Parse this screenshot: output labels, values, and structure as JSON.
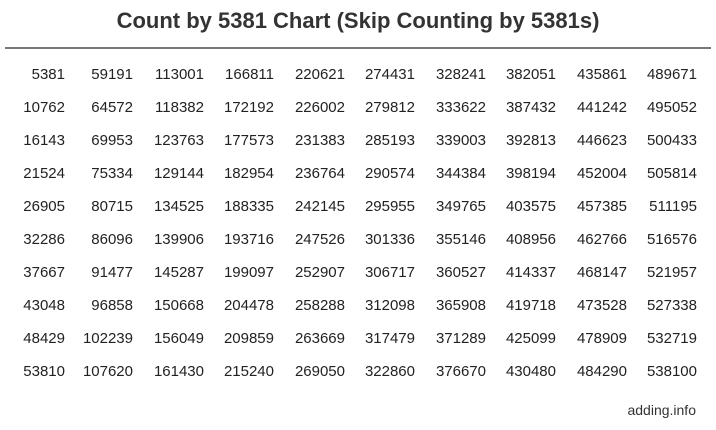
{
  "title": "Count by 5381 Chart (Skip Counting by 5381s)",
  "footer": "adding.info",
  "chart_data": {
    "type": "table",
    "title": "Count by 5381 Chart (Skip Counting by 5381s)",
    "rows": [
      [
        "5381",
        "59191",
        "113001",
        "166811",
        "220621",
        "274431",
        "328241",
        "382051",
        "435861",
        "489671"
      ],
      [
        "10762",
        "64572",
        "118382",
        "172192",
        "226002",
        "279812",
        "333622",
        "387432",
        "441242",
        "495052"
      ],
      [
        "16143",
        "69953",
        "123763",
        "177573",
        "231383",
        "285193",
        "339003",
        "392813",
        "446623",
        "500433"
      ],
      [
        "21524",
        "75334",
        "129144",
        "182954",
        "236764",
        "290574",
        "344384",
        "398194",
        "452004",
        "505814"
      ],
      [
        "26905",
        "80715",
        "134525",
        "188335",
        "242145",
        "295955",
        "349765",
        "403575",
        "457385",
        "511195"
      ],
      [
        "32286",
        "86096",
        "139906",
        "193716",
        "247526",
        "301336",
        "355146",
        "408956",
        "462766",
        "516576"
      ],
      [
        "37667",
        "91477",
        "145287",
        "199097",
        "252907",
        "306717",
        "360527",
        "414337",
        "468147",
        "521957"
      ],
      [
        "43048",
        "96858",
        "150668",
        "204478",
        "258288",
        "312098",
        "365908",
        "419718",
        "473528",
        "527338"
      ],
      [
        "48429",
        "102239",
        "156049",
        "209859",
        "263669",
        "317479",
        "371289",
        "425099",
        "478909",
        "532719"
      ],
      [
        "53810",
        "107620",
        "161430",
        "215240",
        "269050",
        "322860",
        "376670",
        "430480",
        "484290",
        "538100"
      ]
    ]
  }
}
